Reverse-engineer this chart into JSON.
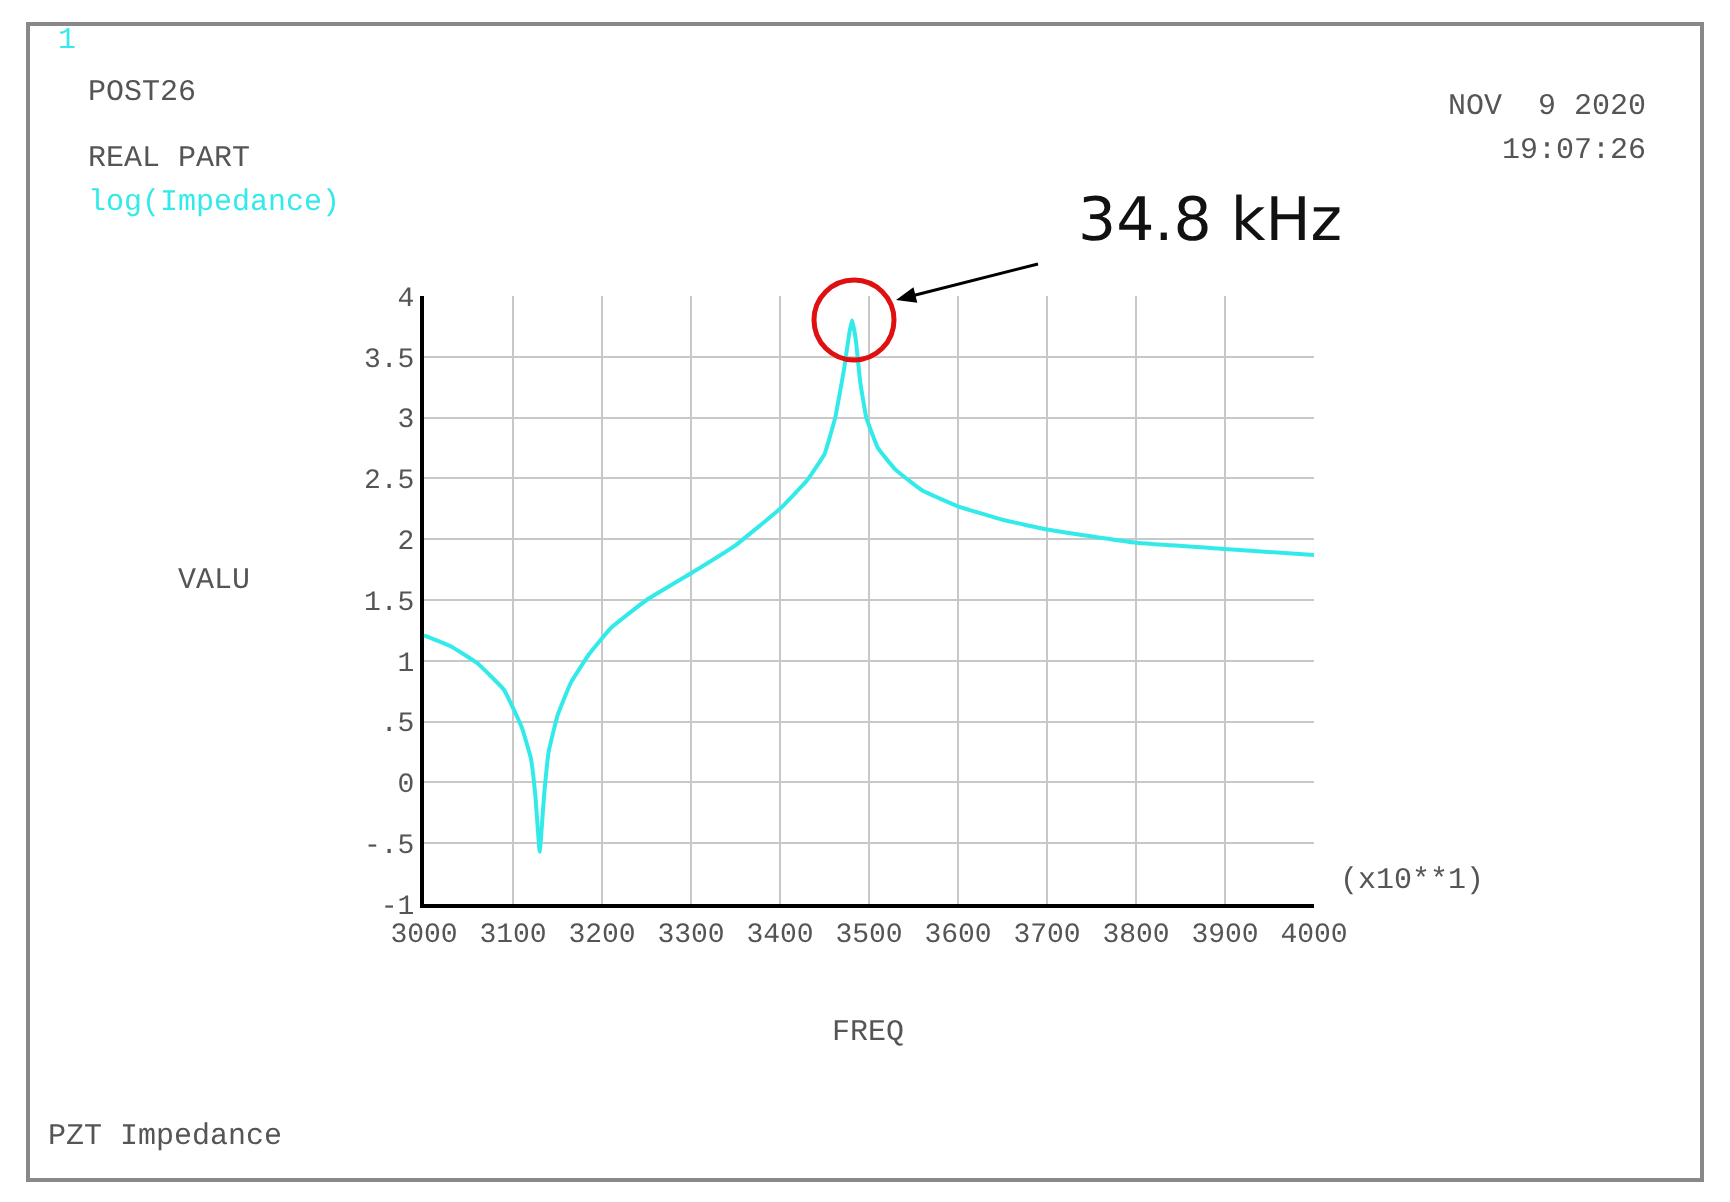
{
  "chart_data": {
    "type": "line",
    "title": "POST26",
    "subtitle": "REAL PART",
    "xlabel": "FREQ",
    "ylabel": "VALU",
    "annotations": [
      "1",
      "NOV  9 2020",
      "19:07:26",
      "(x10**1)",
      "PZT Impedance",
      "34.8 kHz"
    ],
    "x": [
      3000,
      3030,
      3060,
      3090,
      3110,
      3120,
      3125,
      3130,
      3135,
      3140,
      3150,
      3165,
      3185,
      3210,
      3250,
      3300,
      3350,
      3400,
      3430,
      3450,
      3462,
      3472,
      3478,
      3481,
      3485,
      3490,
      3497,
      3510,
      3530,
      3560,
      3600,
      3650,
      3700,
      3800,
      3900,
      4000
    ],
    "series": [
      {
        "name": "log(Impedance)",
        "color": "#33eaea",
        "values": [
          1.21,
          1.12,
          0.98,
          0.76,
          0.45,
          0.2,
          -0.1,
          -0.57,
          -0.1,
          0.25,
          0.55,
          0.82,
          1.05,
          1.27,
          1.5,
          1.72,
          1.95,
          2.25,
          2.48,
          2.7,
          3.0,
          3.4,
          3.7,
          3.8,
          3.65,
          3.3,
          3.0,
          2.75,
          2.57,
          2.4,
          2.27,
          2.16,
          2.08,
          1.97,
          1.92,
          1.87
        ]
      }
    ],
    "xlim": [
      3000,
      4000
    ],
    "xticks": [
      3000,
      3100,
      3200,
      3300,
      3400,
      3500,
      3600,
      3700,
      3800,
      3900,
      4000
    ],
    "ylim": [
      -1,
      4
    ],
    "yticks": [
      -1,
      {
        "value": -0.5,
        "label": "-.5"
      },
      0,
      {
        "value": 0.5,
        "label": ".5"
      },
      1,
      1.5,
      2,
      2.5,
      3,
      3.5,
      4
    ],
    "grid": true,
    "marker": "none",
    "line_style": "solid"
  }
}
